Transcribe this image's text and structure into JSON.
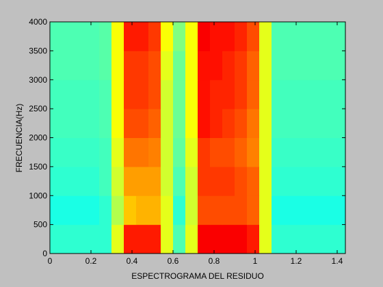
{
  "chart_data": {
    "type": "spectrogram",
    "xlabel": "ESPECTROGRAMA DEL RESIDUO",
    "ylabel": "FRECUENCIA(Hz)",
    "xlim": [
      0,
      1.44
    ],
    "ylim": [
      0,
      4000
    ],
    "xticks": [
      0,
      0.2,
      0.4,
      0.6,
      0.8,
      1,
      1.2,
      1.4
    ],
    "yticks": [
      0,
      500,
      1000,
      1500,
      2000,
      2500,
      3000,
      3500,
      4000
    ],
    "colormap": "jet",
    "clim": [
      0,
      1
    ],
    "xbins": [
      0,
      0.06,
      0.12,
      0.18,
      0.24,
      0.3,
      0.36,
      0.42,
      0.48,
      0.54,
      0.6,
      0.66,
      0.72,
      0.78,
      0.84,
      0.9,
      0.96,
      1.02,
      1.08,
      1.14,
      1.2,
      1.26,
      1.32,
      1.38,
      1.44
    ],
    "ybins": [
      0,
      500,
      1000,
      1500,
      2000,
      2500,
      3000,
      3500,
      4000
    ],
    "values": [
      [
        0.42,
        0.42,
        0.42,
        0.42,
        0.42,
        0.6,
        0.85,
        0.85,
        0.85,
        0.6,
        0.45,
        0.6,
        0.88,
        0.88,
        0.88,
        0.88,
        0.85,
        0.6,
        0.42,
        0.42,
        0.42,
        0.42,
        0.42,
        0.42
      ],
      [
        0.4,
        0.4,
        0.4,
        0.4,
        0.42,
        0.55,
        0.68,
        0.7,
        0.7,
        0.6,
        0.42,
        0.58,
        0.8,
        0.8,
        0.8,
        0.8,
        0.78,
        0.6,
        0.4,
        0.4,
        0.4,
        0.4,
        0.4,
        0.4
      ],
      [
        0.42,
        0.42,
        0.42,
        0.42,
        0.44,
        0.58,
        0.72,
        0.72,
        0.72,
        0.58,
        0.45,
        0.58,
        0.82,
        0.82,
        0.82,
        0.8,
        0.78,
        0.6,
        0.42,
        0.42,
        0.42,
        0.42,
        0.42,
        0.42
      ],
      [
        0.43,
        0.43,
        0.43,
        0.43,
        0.44,
        0.6,
        0.76,
        0.76,
        0.75,
        0.58,
        0.47,
        0.6,
        0.82,
        0.8,
        0.8,
        0.78,
        0.75,
        0.6,
        0.43,
        0.43,
        0.43,
        0.43,
        0.43,
        0.43
      ],
      [
        0.44,
        0.44,
        0.44,
        0.44,
        0.45,
        0.62,
        0.8,
        0.8,
        0.78,
        0.58,
        0.48,
        0.62,
        0.86,
        0.84,
        0.82,
        0.8,
        0.76,
        0.6,
        0.44,
        0.44,
        0.44,
        0.44,
        0.44,
        0.44
      ],
      [
        0.44,
        0.44,
        0.44,
        0.44,
        0.45,
        0.62,
        0.82,
        0.82,
        0.8,
        0.58,
        0.48,
        0.62,
        0.86,
        0.84,
        0.84,
        0.82,
        0.78,
        0.6,
        0.44,
        0.44,
        0.44,
        0.44,
        0.44,
        0.44
      ],
      [
        0.45,
        0.45,
        0.45,
        0.45,
        0.46,
        0.62,
        0.82,
        0.82,
        0.8,
        0.6,
        0.48,
        0.62,
        0.86,
        0.86,
        0.84,
        0.82,
        0.78,
        0.6,
        0.45,
        0.45,
        0.45,
        0.45,
        0.45,
        0.45
      ],
      [
        0.45,
        0.45,
        0.45,
        0.45,
        0.46,
        0.62,
        0.85,
        0.85,
        0.82,
        0.62,
        0.5,
        0.62,
        0.88,
        0.86,
        0.86,
        0.84,
        0.8,
        0.6,
        0.45,
        0.45,
        0.45,
        0.45,
        0.45,
        0.45
      ]
    ]
  }
}
